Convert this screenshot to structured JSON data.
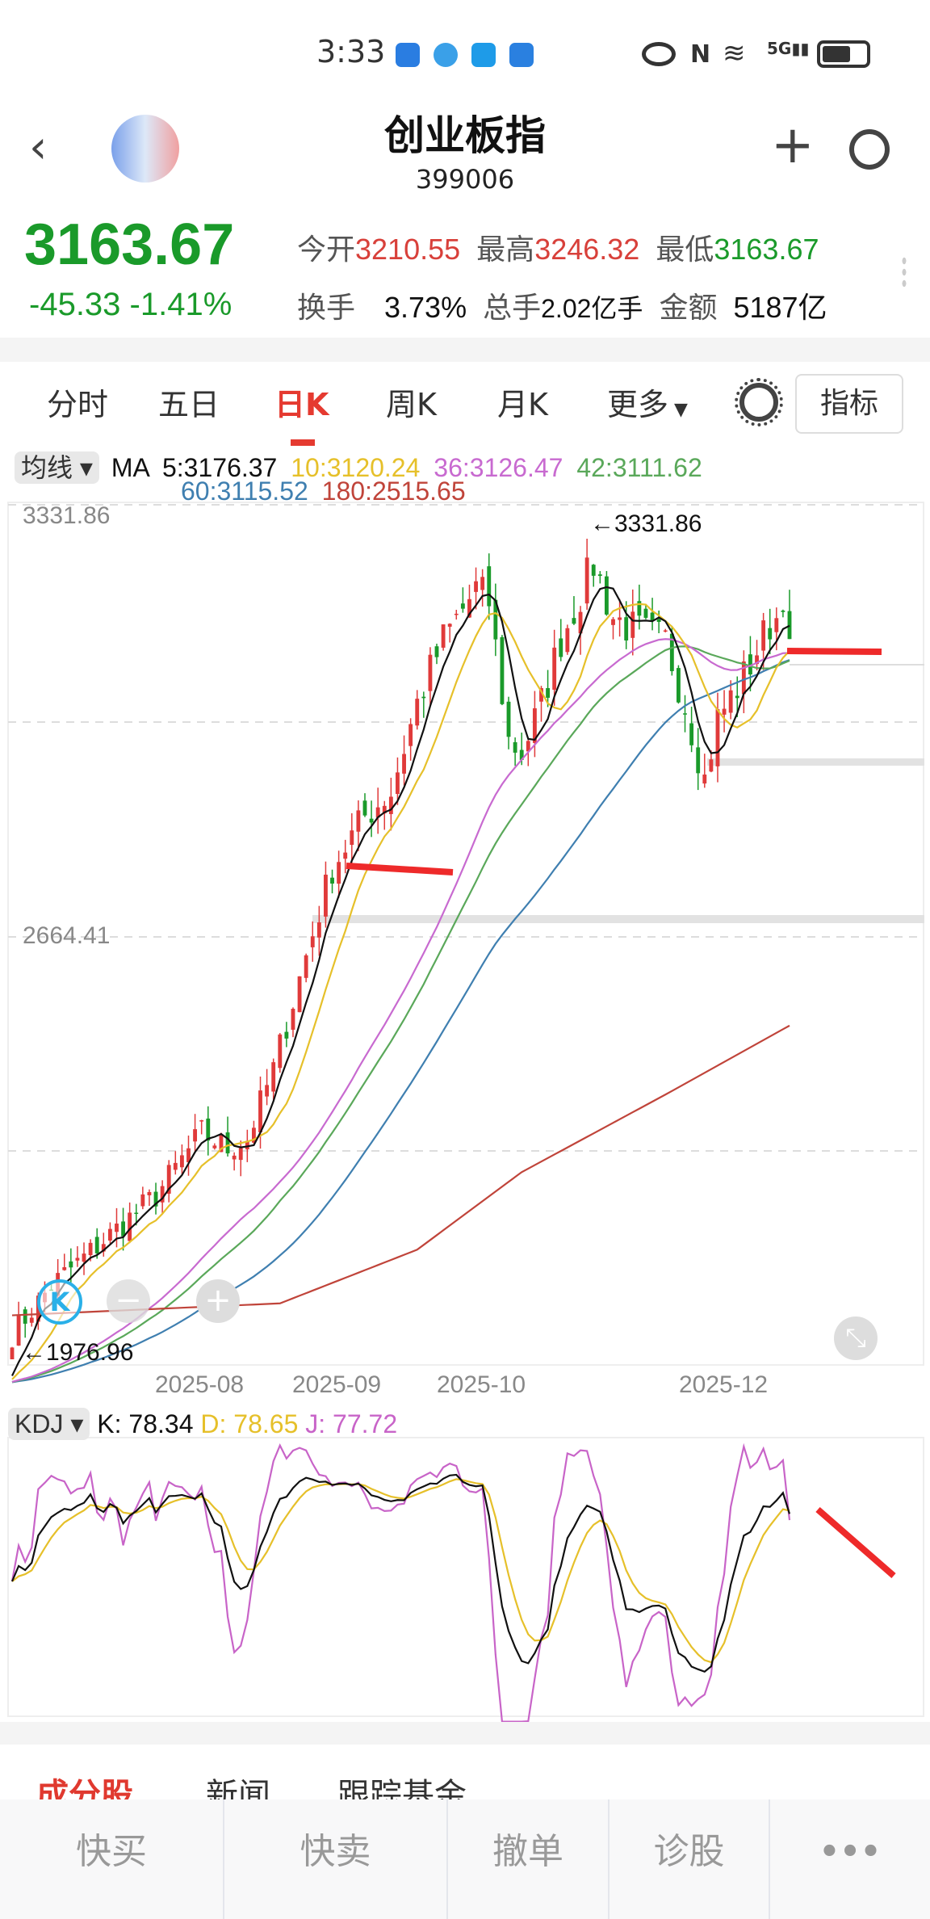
{
  "status_bar": {
    "time": "3:33"
  },
  "header": {
    "title": "创业板指",
    "code": "399006"
  },
  "quote": {
    "price": "3163.67",
    "change": "-45.33",
    "change_pct": "-1.41%",
    "open_label": "今开",
    "open": "3210.55",
    "high_label": "最高",
    "high": "3246.32",
    "low_label": "最低",
    "low": "3163.67",
    "turnover_label": "换手",
    "turnover": "3.73%",
    "volume_label": "总手",
    "volume": "2.02亿手",
    "amount_label": "金额",
    "amount": "5187亿"
  },
  "tabs": [
    {
      "label": "分时"
    },
    {
      "label": "五日"
    },
    {
      "label": "日K",
      "active": true
    },
    {
      "label": "周K"
    },
    {
      "label": "月K"
    },
    {
      "label": "更多"
    }
  ],
  "indicator_button": "指标",
  "ma_legend": {
    "dropdown": "均线",
    "prefix": "MA",
    "ma5": "5:3176.37",
    "ma10": "10:3120.24",
    "ma36": "36:3126.47",
    "ma42": "42:3111.62",
    "ma60": "60:3115.52",
    "ma180": "180:2515.65"
  },
  "kdj_legend": {
    "dropdown": "KDJ",
    "k": "K: 78.34",
    "d": "D: 78.65",
    "j": "J: 77.72"
  },
  "bottom_tabs": [
    "成分股",
    "新闻",
    "跟踪基金"
  ],
  "bottom_bar": [
    "快买",
    "快卖",
    "撤单",
    "诊股"
  ],
  "colors": {
    "up": "#e03a3a",
    "down": "#1a9a2a",
    "ma5": "#111111",
    "ma10": "#e6c02a",
    "ma36": "#c86ad0",
    "ma42": "#5aa85a",
    "ma60": "#3f7fb0",
    "ma180": "#c0443a",
    "k": "#111111",
    "d": "#e6c02a",
    "j": "#c864c8",
    "annotation": "#ee2a2a"
  },
  "chart_data": {
    "type": "candlestick",
    "y_tick_labels": [
      "3331.86",
      "2664.41"
    ],
    "x_tick_labels": [
      "2025-08",
      "2025-09",
      "2025-10",
      "2025-12"
    ],
    "max_label": "3331.86",
    "min_label": "1976.96",
    "range": [
      "2025-06-19",
      "2025-12-11"
    ],
    "close_keypoints": [
      [
        "2025-06-19",
        1998
      ],
      [
        "2025-06-27",
        2080
      ],
      [
        "2025-07-08",
        2146
      ],
      [
        "2025-07-21",
        2231
      ],
      [
        "2025-07-30",
        2336
      ],
      [
        "2025-08-05",
        2310
      ],
      [
        "2025-08-08",
        2326
      ],
      [
        "2025-08-14",
        2442
      ],
      [
        "2025-08-21",
        2633
      ],
      [
        "2025-08-27",
        2781
      ],
      [
        "2025-09-03",
        2867
      ],
      [
        "2025-09-09",
        2908
      ],
      [
        "2025-09-15",
        3056
      ],
      [
        "2025-09-19",
        3163
      ],
      [
        "2025-09-26",
        3247
      ],
      [
        "2025-09-30",
        3226
      ],
      [
        "2025-10-13",
        2994
      ],
      [
        "2025-10-15",
        2972
      ],
      [
        "2025-10-20",
        3056
      ],
      [
        "2025-10-23",
        3163
      ],
      [
        "2025-10-30",
        3290
      ],
      [
        "2025-11-04",
        3200
      ],
      [
        "2025-11-07",
        3180
      ],
      [
        "2025-11-14",
        3160
      ],
      [
        "2025-11-19",
        3056
      ],
      [
        "2025-11-24",
        2929
      ],
      [
        "2025-11-26",
        3030
      ],
      [
        "2025-12-02",
        3100
      ],
      [
        "2025-12-08",
        3190
      ],
      [
        "2025-12-10",
        3209.0
      ],
      [
        "2025-12-11",
        3163.67
      ]
    ],
    "last_candle": {
      "open": 3210.55,
      "high": 3246.32,
      "low": 3163.67,
      "close": 3163.67
    },
    "high": 3331.86,
    "low": 1976.96,
    "ma180_keypoints": [
      [
        "2025-06-19",
        2030
      ],
      [
        "2025-08-15",
        2050
      ],
      [
        "2025-09-15",
        2140
      ],
      [
        "2025-10-15",
        2270
      ],
      [
        "2025-11-14",
        2400
      ],
      [
        "2025-12-11",
        2515.65
      ]
    ],
    "kdj_last": {
      "k": 78.34,
      "d": 78.65,
      "j": 77.72
    }
  }
}
